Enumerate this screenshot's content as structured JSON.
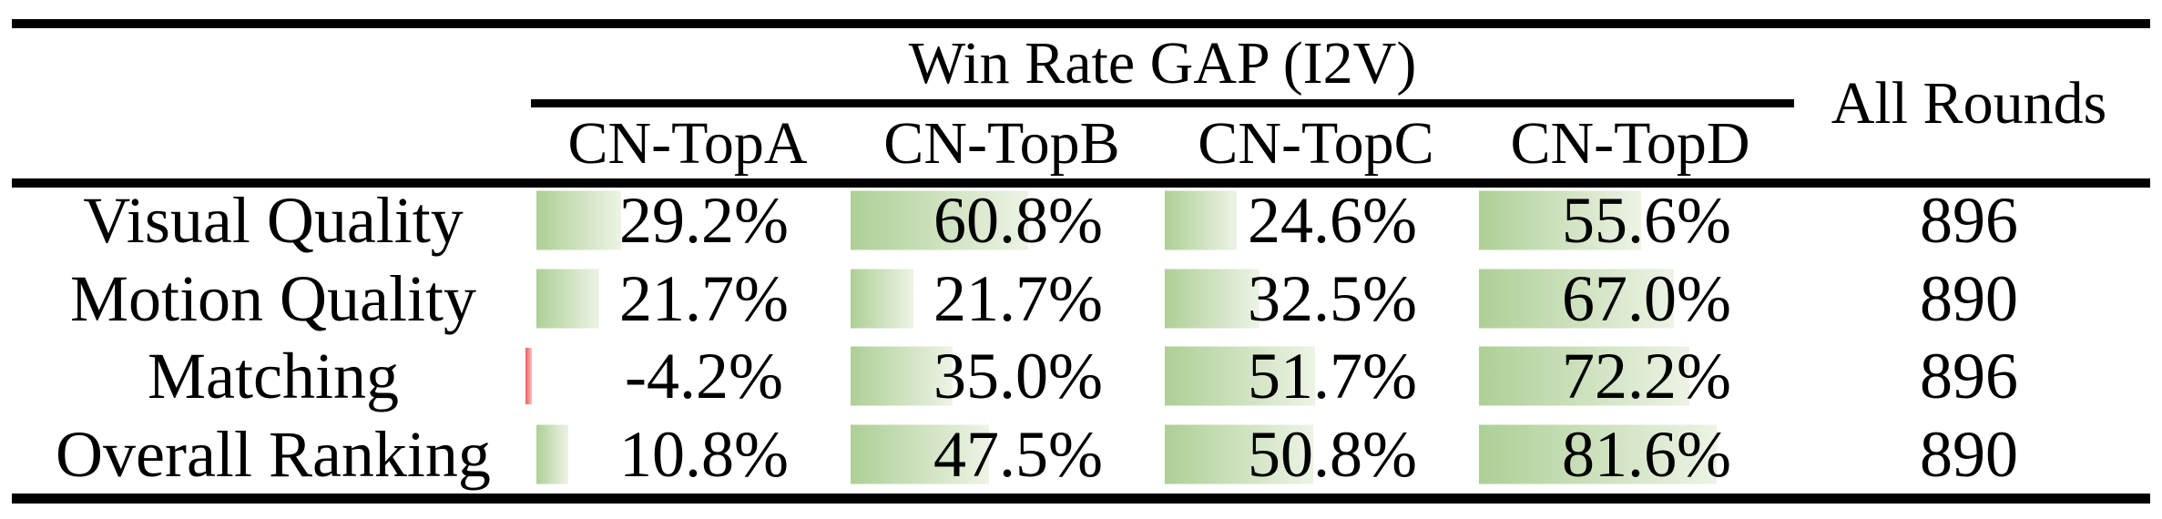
{
  "table": {
    "title": "Win Rate GAP (I2V)",
    "all_rounds_header": "All Rounds",
    "columns": [
      "CN-TopA",
      "CN-TopB",
      "CN-TopC",
      "CN-TopD"
    ],
    "rows": [
      {
        "label": "Visual Quality",
        "values": [
          29.2,
          60.8,
          24.6,
          55.6
        ],
        "display": [
          "29.2%",
          "60.8%",
          "24.6%",
          "55.6%"
        ],
        "all_rounds": "896"
      },
      {
        "label": "Motion Quality",
        "values": [
          21.7,
          21.7,
          32.5,
          67.0
        ],
        "display": [
          "21.7%",
          "21.7%",
          "32.5%",
          "67.0%"
        ],
        "all_rounds": "890"
      },
      {
        "label": "Matching",
        "values": [
          -4.2,
          35.0,
          51.7,
          72.2
        ],
        "display": [
          "-4.2%",
          "35.0%",
          "51.7%",
          "72.2%"
        ],
        "all_rounds": "896"
      },
      {
        "label": "Overall Ranking",
        "values": [
          10.8,
          47.5,
          50.8,
          81.6
        ],
        "display": [
          "10.8%",
          "47.5%",
          "50.8%",
          "81.6%"
        ],
        "all_rounds": "890"
      }
    ],
    "colors": {
      "positive_bar_start": "#adcf96",
      "positive_bar_end": "#edf3e5",
      "negative_bar": "#ef5e5c",
      "rule": "#000000",
      "text": "#000000",
      "background": "#ffffff"
    }
  },
  "chart_data": {
    "type": "table",
    "title": "Win Rate GAP (I2V)",
    "row_header": [
      "Visual Quality",
      "Motion Quality",
      "Matching",
      "Overall Ranking"
    ],
    "columns": [
      "CN-TopA",
      "CN-TopB",
      "CN-TopC",
      "CN-TopD",
      "All Rounds"
    ],
    "series": [
      {
        "name": "CN-TopA",
        "values": [
          29.2,
          21.7,
          -4.2,
          10.8
        ]
      },
      {
        "name": "CN-TopB",
        "values": [
          60.8,
          21.7,
          35.0,
          47.5
        ]
      },
      {
        "name": "CN-TopC",
        "values": [
          24.6,
          32.5,
          51.7,
          50.8
        ]
      },
      {
        "name": "CN-TopD",
        "values": [
          55.6,
          67.0,
          72.2,
          81.6
        ]
      },
      {
        "name": "All Rounds",
        "values": [
          896,
          890,
          896,
          890
        ]
      }
    ],
    "value_unit": "%",
    "layout_hints": {
      "data_bars": "green gradient proportional to value, red for negative",
      "bar_full_scale_percent": 100
    }
  }
}
